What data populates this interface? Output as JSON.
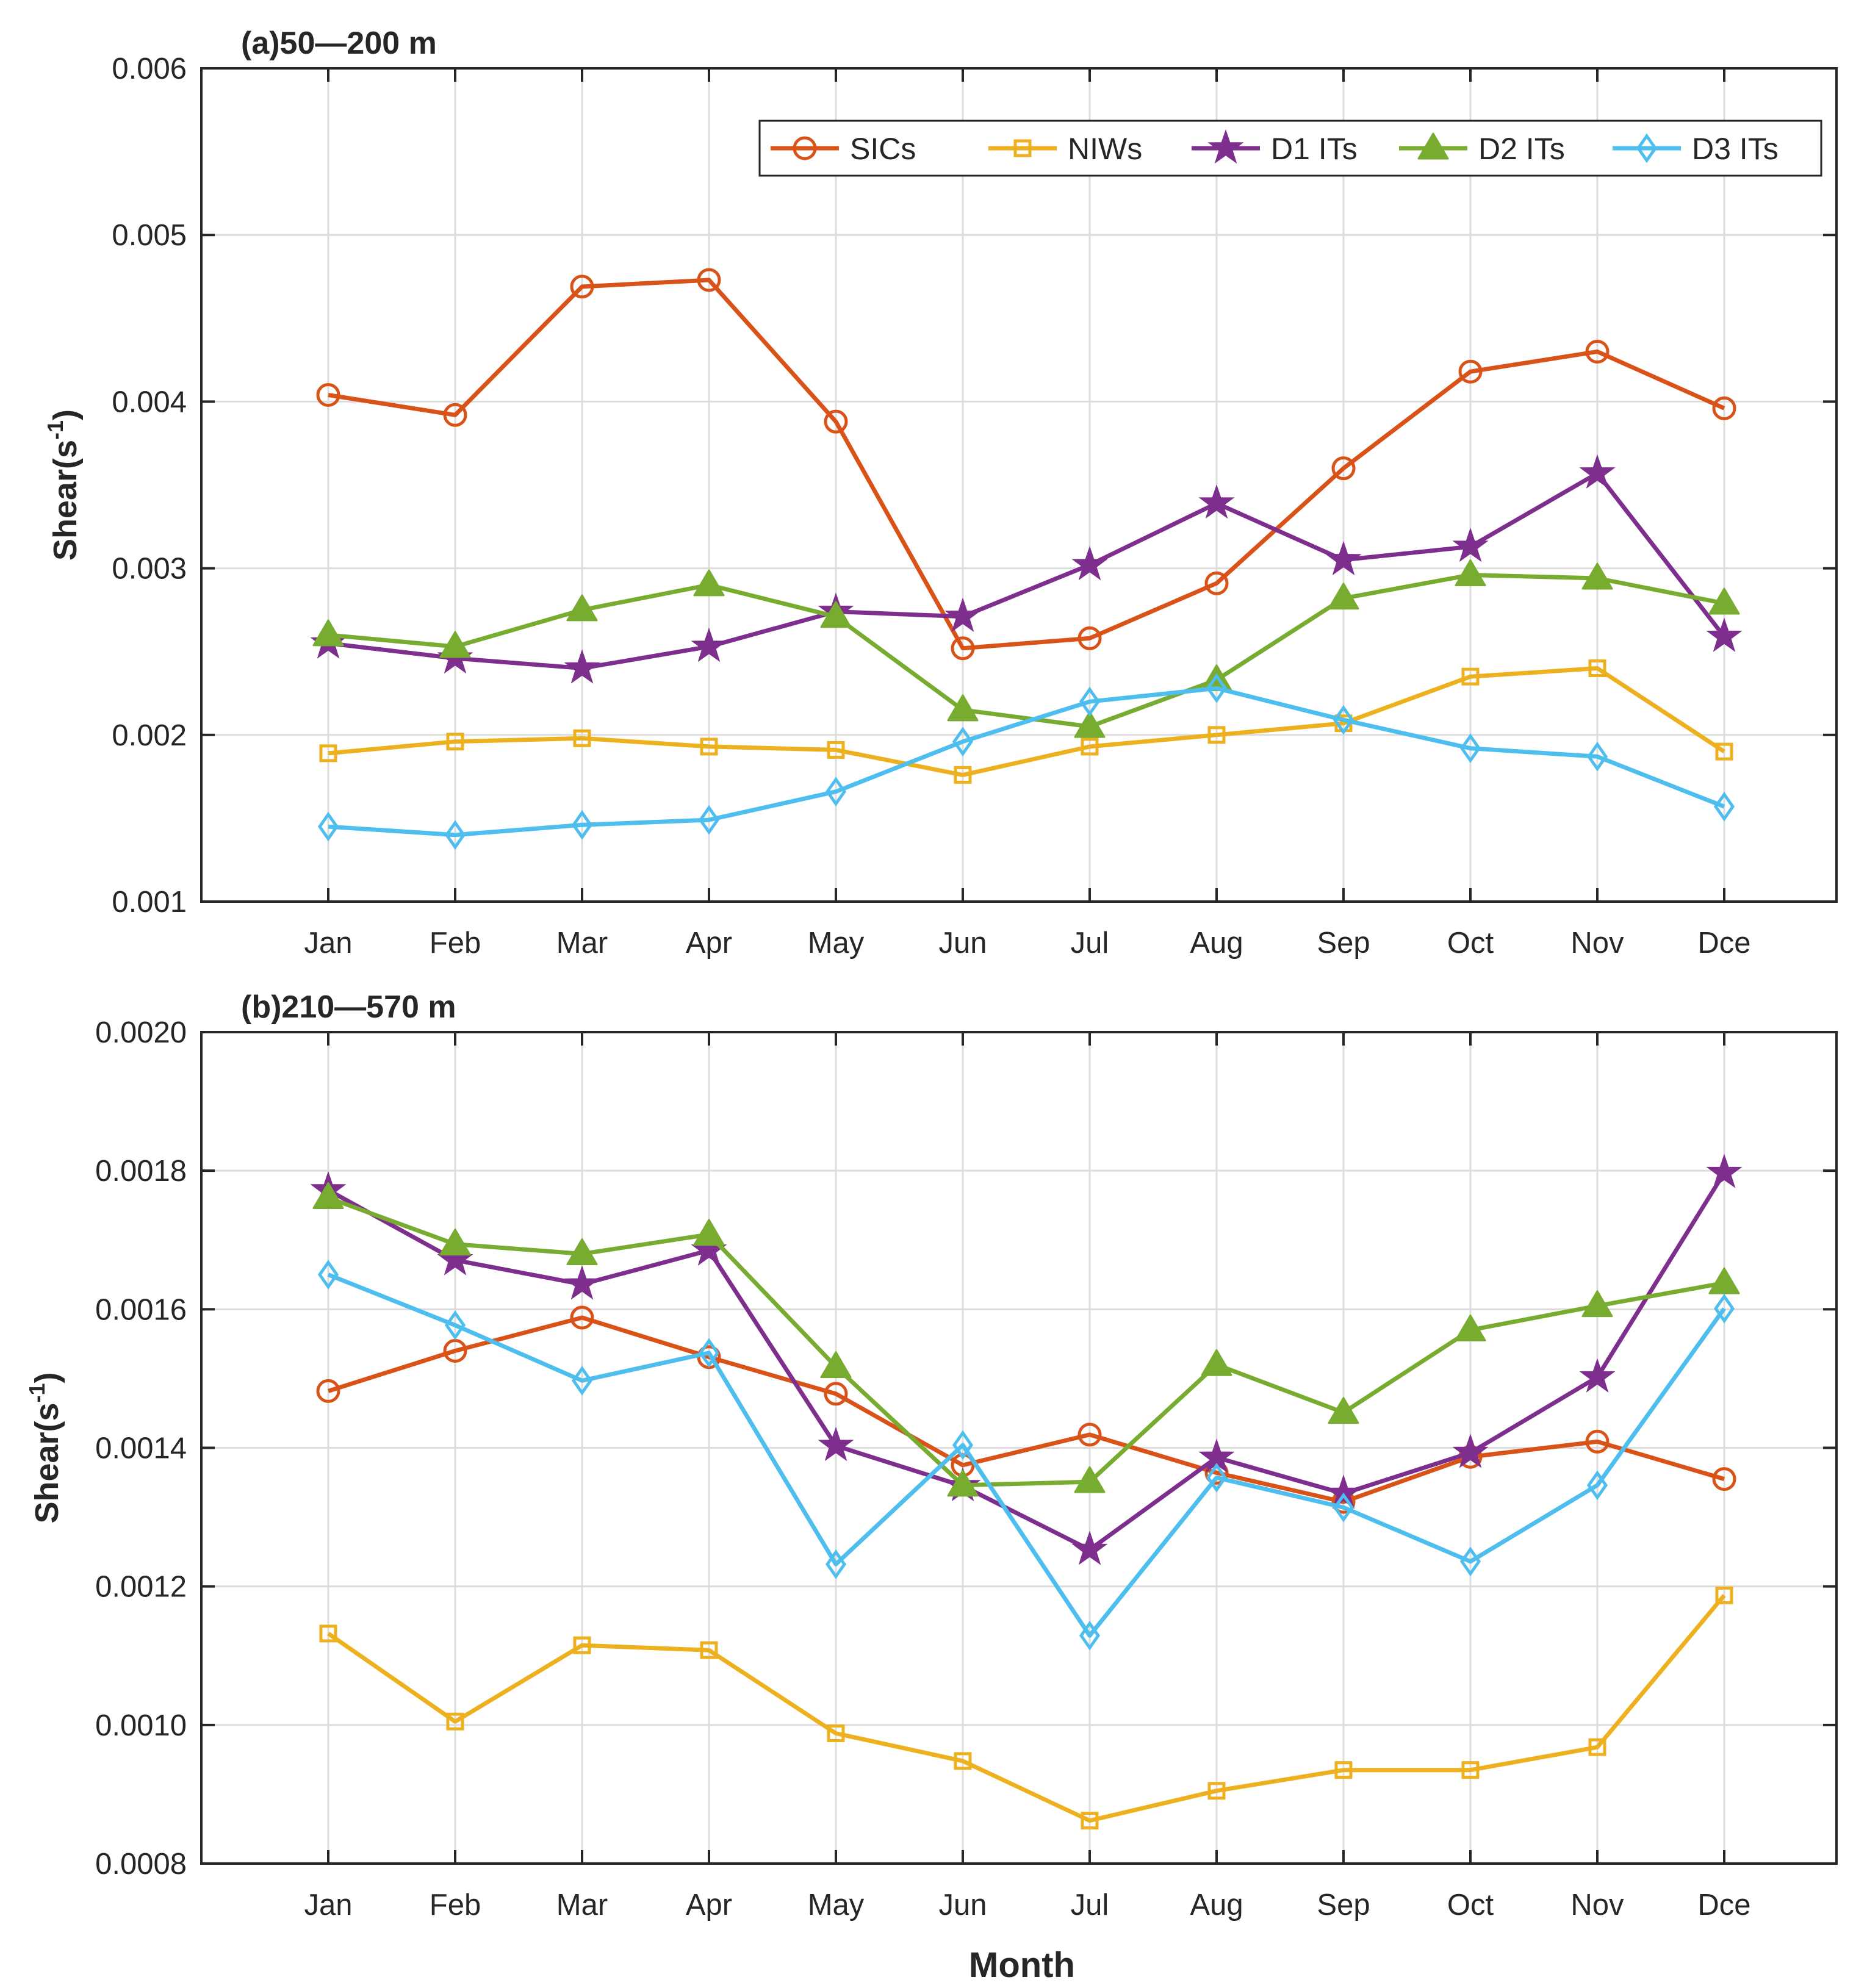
{
  "colors": {
    "SICs": "#D95319",
    "NIWs": "#EDB120",
    "D1 ITs": "#7E2F8E",
    "D2 ITs": "#77AC30",
    "D3 ITs": "#4DBEEE"
  },
  "chart_data": [
    {
      "type": "line",
      "title": "(a)50—200 m",
      "xlabel": "",
      "ylabel": "Shear(s",
      "ylabel_exp": "-1",
      "ylabel_close": ")",
      "categories": [
        "Jan",
        "Feb",
        "Mar",
        "Apr",
        "May",
        "Jun",
        "Jul",
        "Aug",
        "Sep",
        "Oct",
        "Nov",
        "Dce"
      ],
      "ylim": [
        0.001,
        0.006
      ],
      "yticks": [
        0.001,
        0.002,
        0.003,
        0.004,
        0.005,
        0.006
      ],
      "ytick_labels": [
        "0.001",
        "0.002",
        "0.003",
        "0.004",
        "0.005",
        "0.006"
      ],
      "grid": true,
      "legend": "top-right",
      "series": [
        {
          "name": "SICs",
          "marker": "circle",
          "values": [
            0.00404,
            0.00392,
            0.00469,
            0.00473,
            0.00388,
            0.00252,
            0.00258,
            0.00291,
            0.0036,
            0.00418,
            0.0043,
            0.00396
          ]
        },
        {
          "name": "NIWs",
          "marker": "square",
          "values": [
            0.00189,
            0.00196,
            0.00198,
            0.00193,
            0.00191,
            0.00176,
            0.00193,
            0.002,
            0.00207,
            0.00235,
            0.0024,
            0.0019
          ]
        },
        {
          "name": "D1 ITs",
          "marker": "star",
          "values": [
            0.00255,
            0.00246,
            0.0024,
            0.00253,
            0.00274,
            0.00271,
            0.00302,
            0.00339,
            0.00305,
            0.00313,
            0.00357,
            0.00259
          ]
        },
        {
          "name": "D2 ITs",
          "marker": "triangle",
          "values": [
            0.0026,
            0.00253,
            0.00275,
            0.0029,
            0.00271,
            0.00215,
            0.00205,
            0.00233,
            0.00282,
            0.00296,
            0.00294,
            0.00279
          ]
        },
        {
          "name": "D3 ITs",
          "marker": "diamond",
          "values": [
            0.00145,
            0.0014,
            0.00146,
            0.00149,
            0.00166,
            0.00196,
            0.0022,
            0.00228,
            0.00209,
            0.00192,
            0.00187,
            0.00157
          ]
        }
      ]
    },
    {
      "type": "line",
      "title": "(b)210—570 m",
      "xlabel": "Month",
      "ylabel": "Shear(s",
      "ylabel_exp": "-1",
      "ylabel_close": ")",
      "categories": [
        "Jan",
        "Feb",
        "Mar",
        "Apr",
        "May",
        "Jun",
        "Jul",
        "Aug",
        "Sep",
        "Oct",
        "Nov",
        "Dce"
      ],
      "ylim": [
        0.0008,
        0.002
      ],
      "yticks": [
        0.0008,
        0.001,
        0.0012,
        0.0014,
        0.0016,
        0.0018,
        0.002
      ],
      "ytick_labels": [
        "0.0008",
        "0.0010",
        "0.0012",
        "0.0014",
        "0.0016",
        "0.0018",
        "0.0020"
      ],
      "grid": true,
      "legend": "none",
      "series": [
        {
          "name": "SICs",
          "marker": "circle",
          "values": [
            0.001482,
            0.00154,
            0.001588,
            0.001531,
            0.001478,
            0.001375,
            0.001419,
            0.001364,
            0.001322,
            0.001387,
            0.001409,
            0.001355
          ]
        },
        {
          "name": "NIWs",
          "marker": "square",
          "values": [
            0.001132,
            0.001005,
            0.001115,
            0.001108,
            0.000988,
            0.000948,
            0.000862,
            0.000905,
            0.000935,
            0.000935,
            0.000968,
            0.001187
          ]
        },
        {
          "name": "D1 ITs",
          "marker": "star",
          "values": [
            0.001772,
            0.001671,
            0.001636,
            0.001685,
            0.001403,
            0.001345,
            0.001253,
            0.001386,
            0.001334,
            0.001393,
            0.001502,
            0.001797
          ]
        },
        {
          "name": "D2 ITs",
          "marker": "triangle",
          "values": [
            0.001761,
            0.001694,
            0.00168,
            0.001708,
            0.001517,
            0.001346,
            0.001351,
            0.00152,
            0.001451,
            0.00157,
            0.001605,
            0.001638
          ]
        },
        {
          "name": "D3 ITs",
          "marker": "diamond",
          "values": [
            0.00165,
            0.001577,
            0.001497,
            0.001537,
            0.001232,
            0.001404,
            0.001129,
            0.001357,
            0.001314,
            0.001236,
            0.001346,
            0.001601
          ]
        }
      ]
    }
  ]
}
